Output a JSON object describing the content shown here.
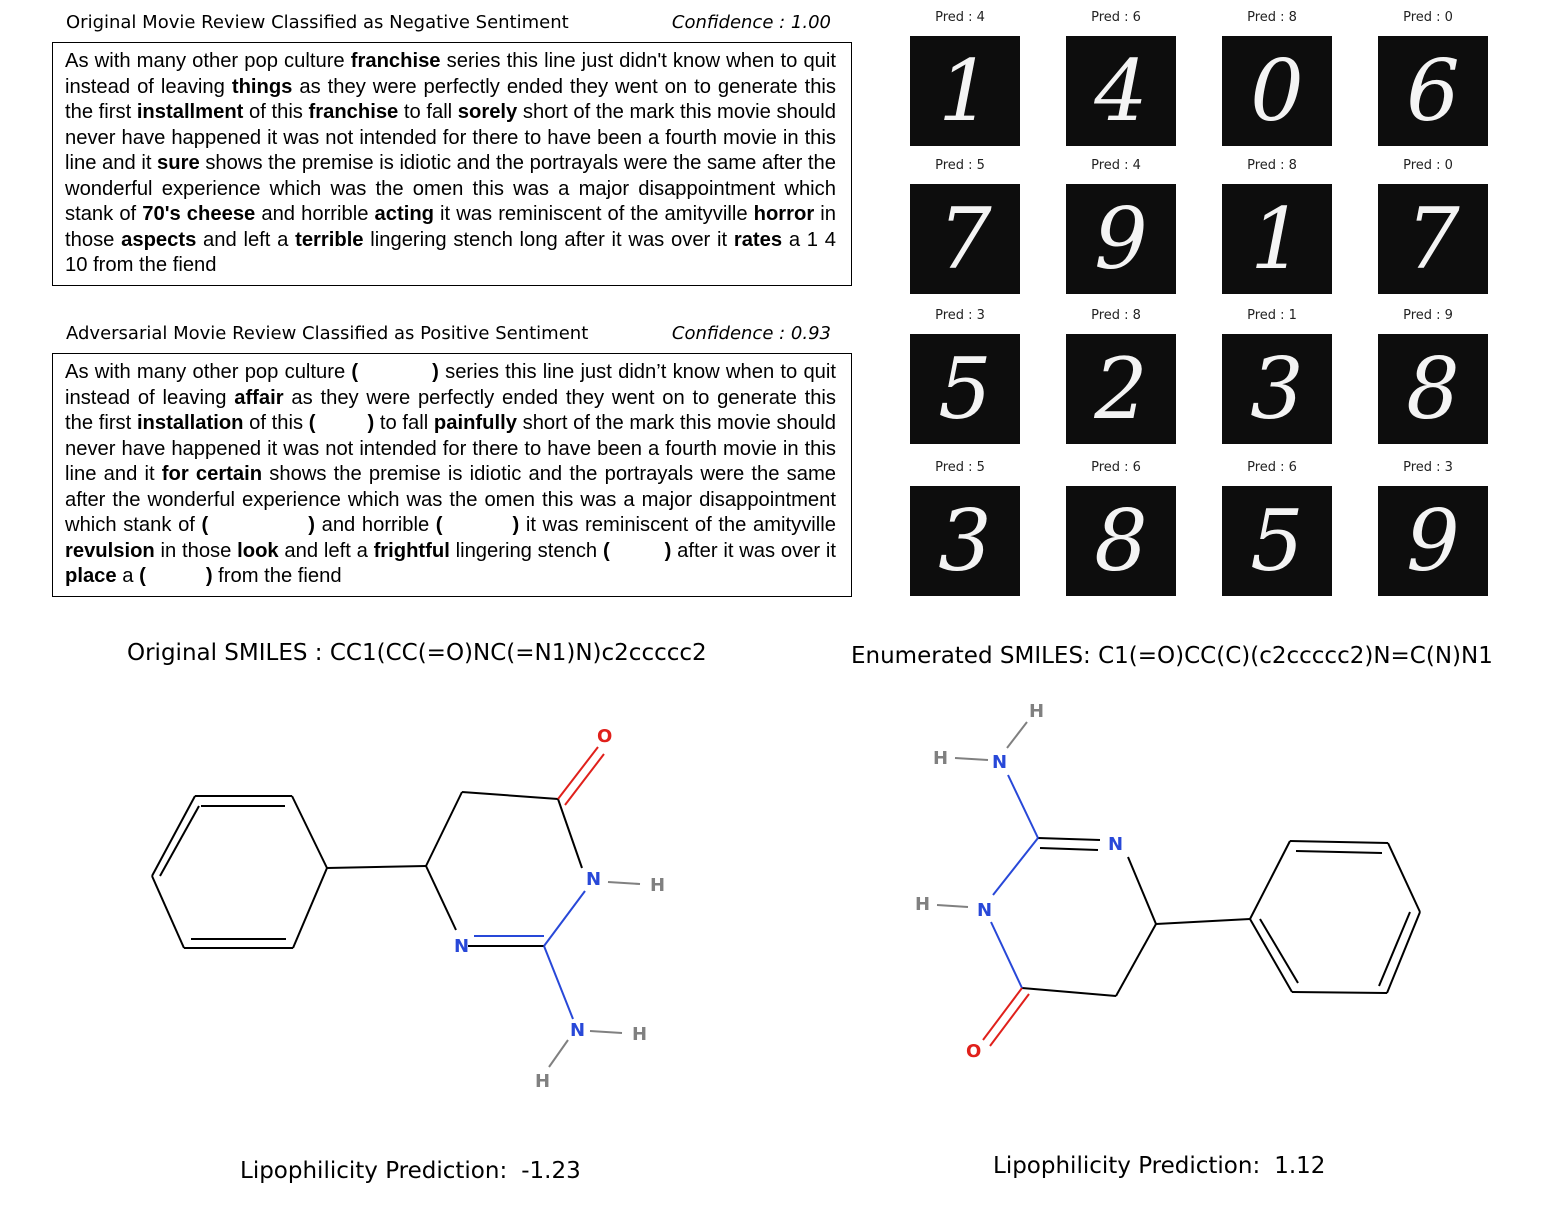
{
  "original_review": {
    "title": "Original Movie Review Classified as Negative Sentiment",
    "confidence": "Confidence : 1.00",
    "text": {
      "s1": "As with many other pop culture ",
      "w1": "franchise",
      "s2": " series this line just didn't know when to quit instead of leaving ",
      "w2": "things",
      "s3": " as they were perfectly ended they went on to generate this the first ",
      "w3": "installment",
      "s4": " of this ",
      "w4": "franchise",
      "s5": " to fall ",
      "w5": "sorely",
      "s6": " short of the mark this movie should never have happened it was not intended for there to have been a fourth movie in this line and it ",
      "w6": "sure",
      "s7": " shows the premise is idiotic and the portrayals were the same after the wonderful experience which was the omen this was a major disappointment which stank of ",
      "w7": "70's cheese",
      "s8": " and horrible ",
      "w8": "acting",
      "s9": " it was reminiscent of the amityville ",
      "w9": "horror",
      "s10": " in those ",
      "w10": "aspects",
      "s11": " and left a ",
      "w11": "terrible",
      "s12": " lingering stench long after it was over it ",
      "w12": "rates",
      "s13": " a 1 4 10 from the fiend"
    }
  },
  "adversarial_review": {
    "title": "Adversarial Movie Review Classified as Positive Sentiment",
    "confidence": "Confidence : 0.93",
    "text": {
      "s1": "As with many other pop culture ",
      "b1a": "(",
      "b1b": ")",
      "s2": " series this line just didn’t know when to quit instead of leaving ",
      "w2": "affair",
      "s3": " as they were perfectly ended they went on to generate this the first ",
      "w3": "installation",
      "s4": " of this ",
      "b4a": "(",
      "b4b": ")",
      "s5": " to fall ",
      "w5": "painfully",
      "s6": " short of the mark this movie should never have happened it was not intended for there to have been a fourth movie in this line and it ",
      "w6": "for certain",
      "s7": " shows the premise is idiotic and the portrayals were the same after the wonderful experience which was the omen this was a major disappointment which stank of ",
      "b7a": "(",
      "b7b": ")",
      "s8": " and horrible ",
      "b8a": "(",
      "b8b": ")",
      "s9": " it was reminiscent of the amityville ",
      "w9": "revulsion",
      "s10": " in those ",
      "w10": "look",
      "s11": " and left a ",
      "w11": "frightful",
      "s12": " lingering stench ",
      "b12a": "(",
      "b12b": ")",
      "s12b": " after it was over it ",
      "w12": "place",
      "s13a": " a ",
      "b13a": "(",
      "b13b": ")",
      "s13": " from the fiend"
    }
  },
  "mnist_grid": [
    {
      "pred": "Pred : 4",
      "digit": "1"
    },
    {
      "pred": "Pred : 6",
      "digit": "4"
    },
    {
      "pred": "Pred : 8",
      "digit": "0"
    },
    {
      "pred": "Pred : 0",
      "digit": "6"
    },
    {
      "pred": "Pred : 5",
      "digit": "7"
    },
    {
      "pred": "Pred : 4",
      "digit": "9"
    },
    {
      "pred": "Pred : 8",
      "digit": "1"
    },
    {
      "pred": "Pred : 0",
      "digit": "7"
    },
    {
      "pred": "Pred : 3",
      "digit": "5"
    },
    {
      "pred": "Pred : 8",
      "digit": "2"
    },
    {
      "pred": "Pred : 1",
      "digit": "3"
    },
    {
      "pred": "Pred : 9",
      "digit": "8"
    },
    {
      "pred": "Pred : 5",
      "digit": "3"
    },
    {
      "pred": "Pred : 6",
      "digit": "8"
    },
    {
      "pred": "Pred : 6",
      "digit": "5"
    },
    {
      "pred": "Pred : 3",
      "digit": "9"
    }
  ],
  "molecules": {
    "original_smiles": "Original SMILES : CC1(CC(=O)NC(=N1)N)c2ccccc2",
    "enumerated_smiles": "Enumerated SMILES: C1(=O)CC(C)(c2ccccc2)N=C(N)N1",
    "original_prediction_label": "Lipophilicity Prediction:",
    "original_prediction_value": "-1.23",
    "enumerated_prediction_label": "Lipophilicity Prediction:",
    "enumerated_prediction_value": "1.12",
    "atom_labels": {
      "oxygen": "O",
      "nitrogen": "N",
      "hydrogen": "H"
    },
    "colors": {
      "oxygen": "#e0201b",
      "nitrogen": "#2848d8",
      "hydrogen": "#808080",
      "bond": "#000000"
    }
  }
}
